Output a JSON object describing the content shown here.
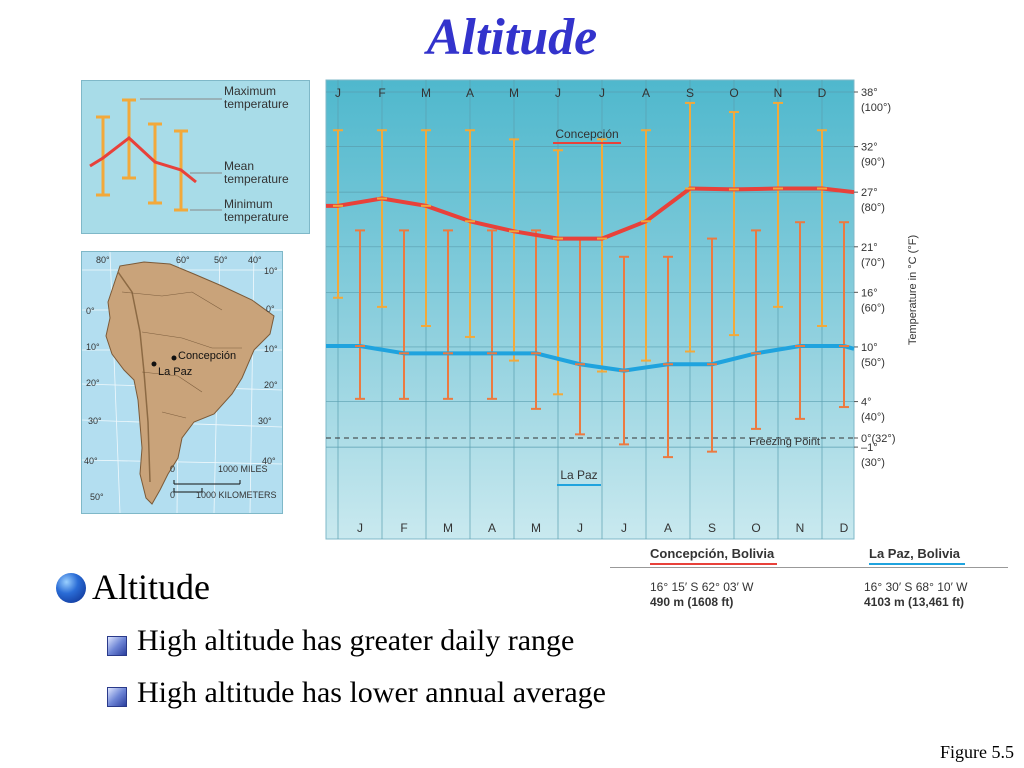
{
  "slide": {
    "title": "Altitude",
    "bullet_main": "Altitude",
    "bullet_sub1": "High altitude has greater daily range",
    "bullet_sub2": "High altitude has lower annual average",
    "figure_label": "Figure  5.5"
  },
  "legend": {
    "max_label_1": "Maximum",
    "max_label_2": "temperature",
    "mean_label_1": "Mean",
    "mean_label_2": "temperature",
    "min_label_1": "Minimum",
    "min_label_2": "temperature"
  },
  "map": {
    "lon_labels": [
      "80°",
      "60°",
      "50°",
      "40°"
    ],
    "lat_left": [
      "0°",
      "10°",
      "20°",
      "30°",
      "40°",
      "50°"
    ],
    "lat_right": [
      "10°",
      "0°",
      "10°",
      "20°",
      "30°",
      "40°"
    ],
    "city_concepcion": "Concepción",
    "city_lapaz": "La Paz",
    "scale_zero_1": "0",
    "scale_miles": "1000 MILES",
    "scale_zero_2": "0",
    "scale_km": "1000 KILOMETERS"
  },
  "stations": {
    "concepcion_name": "Concepción, Bolivia",
    "concepcion_coords": "16° 15′ S 62° 03′ W",
    "concepcion_elev": "490 m (1608 ft)",
    "lapaz_name": "La Paz, Bolivia",
    "lapaz_coords": "16° 30′ S 68° 10′ W",
    "lapaz_elev": "4103 m (13,461 ft)"
  },
  "chart_data": {
    "type": "line",
    "title": "",
    "categories": [
      "J",
      "F",
      "M",
      "A",
      "M",
      "J",
      "J",
      "A",
      "S",
      "O",
      "N",
      "D"
    ],
    "ylabel": "Temperature in °C (°F)",
    "ylim": [
      -3.5,
      39
    ],
    "y_ticks": [
      {
        "c": 38,
        "label_c": "38°",
        "label_f": "(100°)"
      },
      {
        "c": 32,
        "label_c": "32°",
        "label_f": "(90°)"
      },
      {
        "c": 27,
        "label_c": "27°",
        "label_f": "(80°)"
      },
      {
        "c": 21,
        "label_c": "21°",
        "label_f": "(70°)"
      },
      {
        "c": 16,
        "label_c": "16°",
        "label_f": "(60°)"
      },
      {
        "c": 10,
        "label_c": "10°",
        "label_f": "(50°)"
      },
      {
        "c": 4,
        "label_c": "4°",
        "label_f": "(40°)"
      },
      {
        "c": 0,
        "label_c": "0°(32°)",
        "label_f": ""
      },
      {
        "c": -1,
        "label_c": "–1°",
        "label_f": "(30°)"
      }
    ],
    "freezing_point_label": "Freezing Point",
    "series": [
      {
        "name": "Concepción",
        "color": "#e8413a",
        "bar_color": "#f2a93a",
        "mean": [
          25.5,
          26.3,
          25.5,
          23.8,
          22.7,
          21.9,
          21.9,
          23.8,
          27.4,
          27.3,
          27.4,
          27.4
        ],
        "max": [
          33.8,
          33.8,
          33.8,
          33.8,
          32.8,
          31.6,
          32.8,
          33.8,
          36.8,
          35.8,
          36.8,
          33.8
        ],
        "min": [
          15.4,
          14.4,
          12.3,
          11.1,
          8.5,
          4.8,
          7.3,
          8.5,
          9.5,
          11.3,
          14.4,
          12.3
        ]
      },
      {
        "name": "La Paz",
        "color": "#1fa3de",
        "bar_color": "#ec7a40",
        "mean": [
          10.1,
          9.3,
          9.3,
          9.3,
          9.3,
          8.1,
          7.4,
          8.1,
          8.1,
          9.3,
          10.1,
          10.1
        ],
        "max": [
          22.8,
          22.8,
          22.8,
          22.8,
          22.8,
          21.9,
          19.9,
          19.9,
          21.9,
          22.8,
          23.7,
          23.7
        ],
        "min": [
          4.3,
          4.3,
          4.3,
          4.3,
          3.2,
          0.4,
          -0.7,
          -2.1,
          -1.5,
          1.0,
          2.1,
          3.4
        ]
      }
    ]
  }
}
